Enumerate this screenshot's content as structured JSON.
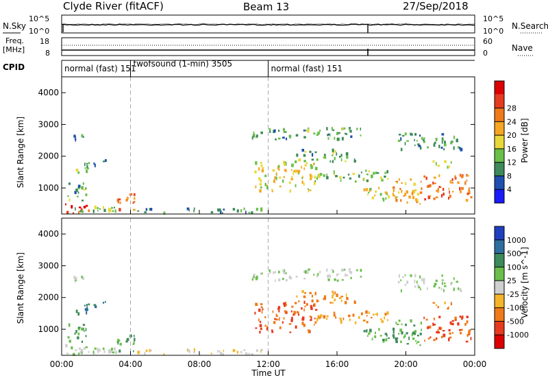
{
  "header": {
    "station": "Clyde River (fitACF)",
    "beam": "Beam 13",
    "date": "27/Sep/2018"
  },
  "noise_panel": {
    "left_label": "N.Sky",
    "right_label": "N.Search",
    "left_ticks": [
      "10^5",
      "10^0"
    ],
    "right_ticks": [
      "10^5",
      "10^0"
    ]
  },
  "freq_panel": {
    "left_label_line1": "Freq.",
    "left_label_line2": "[MHz]",
    "left_ticks": [
      "18",
      "8"
    ],
    "right_label": "Nave",
    "right_ticks": [
      "60",
      "0"
    ]
  },
  "cpid": {
    "label": "CPID",
    "segments": [
      {
        "text": "normal (fast) 151",
        "start_hour": 0,
        "end_hour": 4
      },
      {
        "text": "twofsound (1-min) 3505",
        "start_hour": 4,
        "end_hour": 12
      },
      {
        "text": "normal (fast) 151",
        "start_hour": 12,
        "end_hour": 24
      }
    ]
  },
  "axes": {
    "x_label": "Time UT",
    "x_ticks": [
      "00:00",
      "04:00",
      "08:00",
      "12:00",
      "16:00",
      "20:00",
      "00:00"
    ],
    "y_label": "Slant Range [km]",
    "y_ticks": [
      "1000",
      "2000",
      "3000",
      "4000"
    ]
  },
  "power_colorbar": {
    "label": "Power [dB]",
    "ticks": [
      "4",
      "8",
      "12",
      "16",
      "20",
      "24",
      "28"
    ],
    "colors": [
      "#1a1aff",
      "#1f4fb0",
      "#3d8a5a",
      "#6abf4b",
      "#e8d83a",
      "#f5a623",
      "#f07a1a",
      "#e63b1f",
      "#dd0000"
    ]
  },
  "velocity_colorbar": {
    "label": "Velocity [m s^-1]",
    "ticks": [
      "1000",
      "500",
      "100",
      "25",
      "-25",
      "-100",
      "-500",
      "-1000"
    ],
    "colors": [
      "#1f3fbf",
      "#2f6fa0",
      "#3d8a5a",
      "#6abf4b",
      "#cfcfcf",
      "#f5b52a",
      "#f07a1a",
      "#e63b1f",
      "#dd0000"
    ]
  },
  "chart_data": {
    "type": "heatmap",
    "x": {
      "unit": "hour UT",
      "range": [
        0,
        24
      ]
    },
    "y": {
      "unit": "km",
      "range": [
        180,
        4500
      ]
    },
    "scatter_regions": [
      {
        "t0": 0.0,
        "t1": 1.6,
        "r0": 200,
        "r1": 500,
        "power": 28,
        "vel": 25
      },
      {
        "t0": 0.0,
        "t1": 3.8,
        "r0": 200,
        "r1": 420,
        "power": 12,
        "vel": 25
      },
      {
        "t0": 0.2,
        "t1": 1.4,
        "r0": 600,
        "r1": 1200,
        "power": 10,
        "vel": 100
      },
      {
        "t0": 0.4,
        "t1": 1.2,
        "r0": 2500,
        "r1": 2700,
        "power": 8,
        "vel": 25
      },
      {
        "t0": 0.8,
        "t1": 1.5,
        "r0": 1400,
        "r1": 1700,
        "power": 12,
        "vel": 500
      },
      {
        "t0": 1.3,
        "t1": 2.8,
        "r0": 1700,
        "r1": 1900,
        "power": 8,
        "vel": 500
      },
      {
        "t0": 3.2,
        "t1": 4.3,
        "r0": 300,
        "r1": 900,
        "power": 24,
        "vel": 100
      },
      {
        "t0": 4.0,
        "t1": 12.0,
        "r0": 200,
        "r1": 350,
        "power": 8,
        "vel": -25
      },
      {
        "t0": 11.2,
        "t1": 14.8,
        "r0": 900,
        "r1": 1900,
        "power": 16,
        "vel": -500
      },
      {
        "t0": 11.0,
        "t1": 17.5,
        "r0": 2500,
        "r1": 2900,
        "power": 10,
        "vel": 25
      },
      {
        "t0": 13.5,
        "t1": 17.0,
        "r0": 1800,
        "r1": 2200,
        "power": 10,
        "vel": -100
      },
      {
        "t0": 14.5,
        "t1": 19.0,
        "r0": 1200,
        "r1": 1600,
        "power": 12,
        "vel": -100
      },
      {
        "t0": 17.5,
        "t1": 19.5,
        "r0": 600,
        "r1": 1000,
        "power": 16,
        "vel": 100
      },
      {
        "t0": 19.2,
        "t1": 21.0,
        "r0": 500,
        "r1": 1400,
        "power": 20,
        "vel": 100
      },
      {
        "t0": 21.0,
        "t1": 23.8,
        "r0": 600,
        "r1": 1400,
        "power": 24,
        "vel": -500
      },
      {
        "t0": 19.5,
        "t1": 23.5,
        "r0": 2200,
        "r1": 2700,
        "power": 8,
        "vel": 25
      },
      {
        "t0": 21.5,
        "t1": 22.6,
        "r0": 1600,
        "r1": 1900,
        "power": 16,
        "vel": -100
      }
    ],
    "dashed_markers_hour": [
      4,
      12
    ]
  }
}
